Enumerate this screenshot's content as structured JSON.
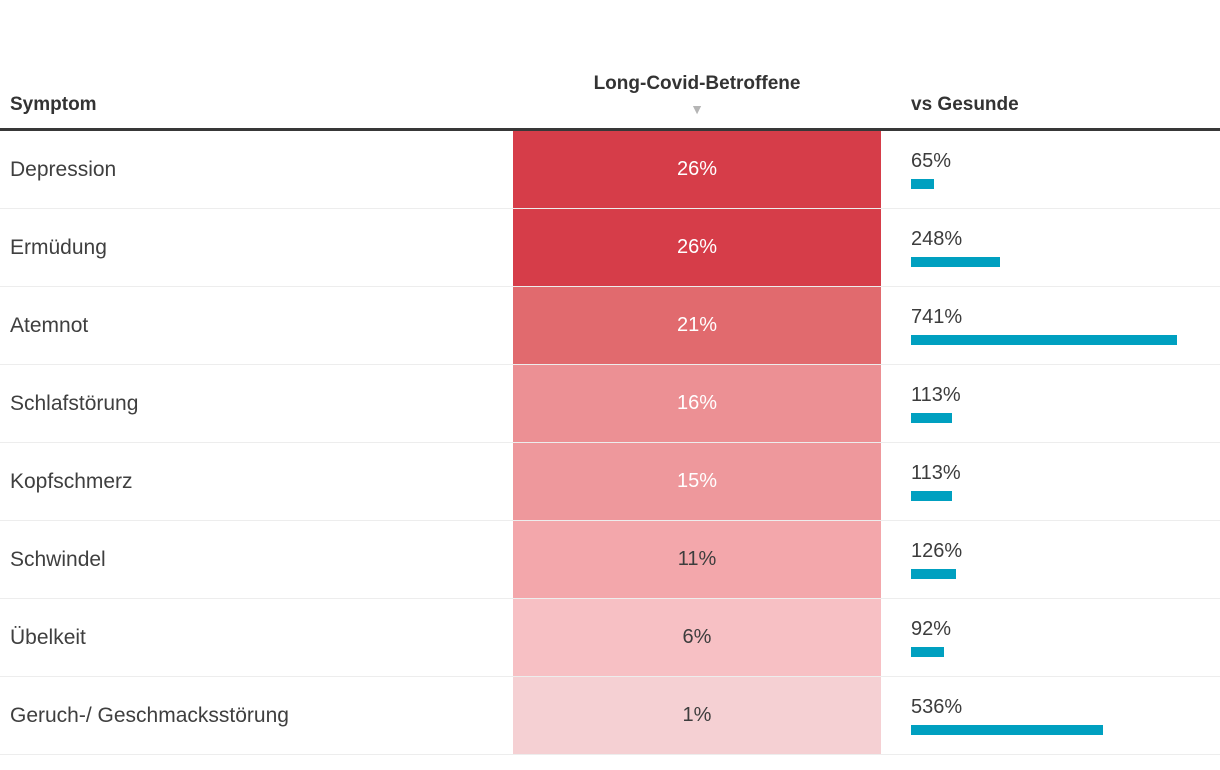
{
  "header": {
    "symptom": "Symptom",
    "betroffene": "Long-Covid-Betroffene",
    "vs_gesunde": "vs Gesunde",
    "sort_icon": "▼"
  },
  "colors": {
    "bar_teal": "#00a0c0",
    "header_rule": "#383838",
    "row_divider": "#ededed",
    "label_text": "#3f3f3f",
    "heatmap_base": "#d63d49"
  },
  "rows": [
    {
      "label": "Depression",
      "value_display": "26%",
      "cell_bg": "#d63d49",
      "cell_text": "#ffffff",
      "vs_display": "65%",
      "vs_value": 65
    },
    {
      "label": "Ermüdung",
      "value_display": "26%",
      "cell_bg": "#d63d49",
      "cell_text": "#ffffff",
      "vs_display": "248%",
      "vs_value": 248
    },
    {
      "label": "Atemnot",
      "value_display": "21%",
      "cell_bg": "#e16a6e",
      "cell_text": "#ffffff",
      "vs_display": "741%",
      "vs_value": 741
    },
    {
      "label": "Schlafstörung",
      "value_display": "16%",
      "cell_bg": "#ec9094",
      "cell_text": "#ffffff",
      "vs_display": "113%",
      "vs_value": 113
    },
    {
      "label": "Kopfschmerz",
      "value_display": "15%",
      "cell_bg": "#ee989c",
      "cell_text": "#ffffff",
      "vs_display": "113%",
      "vs_value": 113
    },
    {
      "label": "Schwindel",
      "value_display": "11%",
      "cell_bg": "#f3a7ab",
      "cell_text": "#3d3d3d",
      "vs_display": "126%",
      "vs_value": 126
    },
    {
      "label": "Übelkeit",
      "value_display": "6%",
      "cell_bg": "#f7c0c4",
      "cell_text": "#3d3d3d",
      "vs_display": "92%",
      "vs_value": 92
    },
    {
      "label": "Geruch-/ Geschmacksstörung",
      "value_display": "1%",
      "cell_bg": "#f5d0d3",
      "cell_text": "#3d3d3d",
      "vs_display": "536%",
      "vs_value": 536
    }
  ],
  "chart_data": {
    "type": "table",
    "title": "",
    "columns": [
      "Symptom",
      "Long-Covid-Betroffene",
      "vs Gesunde"
    ],
    "categories": [
      "Depression",
      "Ermüdung",
      "Atemnot",
      "Schlafstörung",
      "Kopfschmerz",
      "Schwindel",
      "Übelkeit",
      "Geruch-/ Geschmacksstörung"
    ],
    "series": [
      {
        "name": "Long-Covid-Betroffene",
        "display": "heatmap",
        "unit": "%",
        "values": [
          26,
          26,
          21,
          16,
          15,
          11,
          6,
          1
        ]
      },
      {
        "name": "vs Gesunde",
        "display": "bar",
        "unit": "%",
        "values": [
          65,
          248,
          741,
          113,
          113,
          126,
          92,
          536
        ]
      }
    ],
    "sort": {
      "column": "Long-Covid-Betroffene",
      "direction": "desc"
    },
    "heatmap_domain": [
      0,
      26
    ],
    "bar_domain": [
      0,
      741
    ]
  }
}
